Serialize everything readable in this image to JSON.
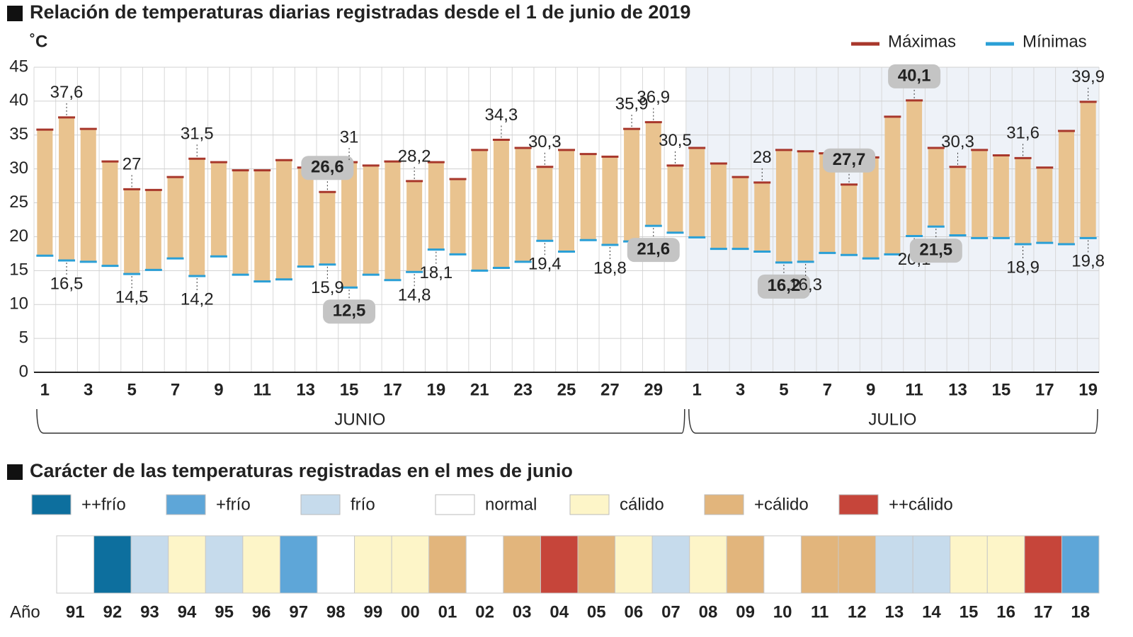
{
  "chart_data": [
    {
      "type": "range_bar",
      "title": "Relación de temperaturas diarias registradas desde el 1 de junio de 2019",
      "y_label": "˚C",
      "categories": [
        "1",
        null,
        "3",
        null,
        "5",
        null,
        "7",
        null,
        "9",
        null,
        "11",
        null,
        "13",
        null,
        "15",
        null,
        "17",
        null,
        "19",
        null,
        "21",
        null,
        "23",
        null,
        "25",
        null,
        "27",
        null,
        "29",
        null,
        "1",
        null,
        "3",
        null,
        "5",
        null,
        "7",
        null,
        "9",
        null,
        "11",
        null,
        "13",
        null,
        "15",
        null,
        "17",
        null,
        "19"
      ],
      "groups": [
        "JUNIO",
        "JULIO"
      ],
      "bar_color": "#e9c38f",
      "ylim": [
        0,
        45
      ],
      "yticks": [
        0,
        5,
        10,
        15,
        20,
        25,
        30,
        35,
        40,
        45
      ],
      "grid": true,
      "legend": "top-right",
      "series": [
        {
          "name": "Máximas",
          "color": "#a8372b",
          "values": [
            35.8,
            37.6,
            35.9,
            31.1,
            27,
            26.9,
            28.8,
            31.5,
            31.0,
            29.8,
            29.8,
            31.3,
            30.2,
            26.6,
            31,
            30.5,
            31.1,
            28.2,
            31.0,
            28.5,
            32.8,
            34.3,
            33.1,
            30.3,
            32.8,
            32.2,
            31.8,
            35.9,
            36.9,
            30.5,
            33.1,
            30.8,
            28.8,
            28,
            32.8,
            32.6,
            32.3,
            27.7,
            31.7,
            37.7,
            40.1,
            33.1,
            30.3,
            32.8,
            32.0,
            31.6,
            30.2,
            35.6,
            39.9
          ],
          "value_labels": [
            null,
            "37,6",
            null,
            null,
            "27",
            null,
            null,
            "31,5",
            null,
            null,
            null,
            null,
            null,
            "26,6",
            "31",
            null,
            null,
            "28,2",
            null,
            null,
            null,
            "34,3",
            null,
            "30,3",
            null,
            null,
            null,
            "35,9",
            "36,9",
            "30,5",
            null,
            null,
            null,
            "28",
            null,
            null,
            null,
            "27,7",
            null,
            null,
            "40,1",
            null,
            "30,3",
            null,
            null,
            "31,6",
            null,
            null,
            "39,9"
          ],
          "highlight": [
            13,
            37,
            40
          ]
        },
        {
          "name": "Mínimas",
          "color": "#2a9fd6",
          "values": [
            17.2,
            16.5,
            16.3,
            15.7,
            14.5,
            15.1,
            16.8,
            14.2,
            17.1,
            14.4,
            13.4,
            13.7,
            15.6,
            15.9,
            12.5,
            14.4,
            13.6,
            14.8,
            18.1,
            17.4,
            15.0,
            15.4,
            16.3,
            19.4,
            17.8,
            19.5,
            18.8,
            19.3,
            21.6,
            20.6,
            19.9,
            18.2,
            18.2,
            17.8,
            16.2,
            16.3,
            17.6,
            17.3,
            16.8,
            17.4,
            20.1,
            21.5,
            20.2,
            19.8,
            19.8,
            18.9,
            19.1,
            18.9,
            19.8
          ],
          "value_labels": [
            null,
            "16,5",
            null,
            null,
            "14,5",
            null,
            null,
            "14,2",
            null,
            null,
            null,
            null,
            null,
            "15,9",
            "12,5",
            null,
            null,
            "14,8",
            "18,1",
            null,
            null,
            null,
            null,
            "19,4",
            null,
            null,
            "18,8",
            null,
            "21,6",
            null,
            null,
            null,
            null,
            null,
            "16,2",
            "16,3",
            null,
            null,
            null,
            null,
            "20,1",
            "21,5",
            null,
            null,
            null,
            "18,9",
            null,
            null,
            "19,8"
          ],
          "highlight": [
            14,
            28,
            34,
            41
          ]
        }
      ]
    },
    {
      "type": "strip",
      "title": "Carácter de las temperaturas registradas en el mes de junio",
      "row_label": "Año",
      "classes": [
        {
          "name": "++frío",
          "color": "#0d6f9e"
        },
        {
          "name": "+frío",
          "color": "#5ea6d8"
        },
        {
          "name": "frío",
          "color": "#c6dbec"
        },
        {
          "name": "normal",
          "color": "#ffffff"
        },
        {
          "name": "cálido",
          "color": "#fdf5c8"
        },
        {
          "name": "+cálido",
          "color": "#e2b57c"
        },
        {
          "name": "++cálido",
          "color": "#c6453a"
        }
      ],
      "categories": [
        "91",
        "92",
        "93",
        "94",
        "95",
        "96",
        "97",
        "98",
        "99",
        "00",
        "01",
        "02",
        "03",
        "04",
        "05",
        "06",
        "07",
        "08",
        "09",
        "10",
        "11",
        "12",
        "13",
        "14",
        "15",
        "16",
        "17",
        "18"
      ],
      "values": [
        "normal",
        "++frío",
        "frío",
        "cálido",
        "frío",
        "cálido",
        "+frío",
        "normal",
        "cálido",
        "cálido",
        "+cálido",
        "normal",
        "+cálido",
        "++cálido",
        "+cálido",
        "cálido",
        "frío",
        "cálido",
        "+cálido",
        "normal",
        "+cálido",
        "+cálido",
        "frío",
        "frío",
        "cálido",
        "cálido",
        "++cálido",
        "+frío"
      ]
    }
  ]
}
